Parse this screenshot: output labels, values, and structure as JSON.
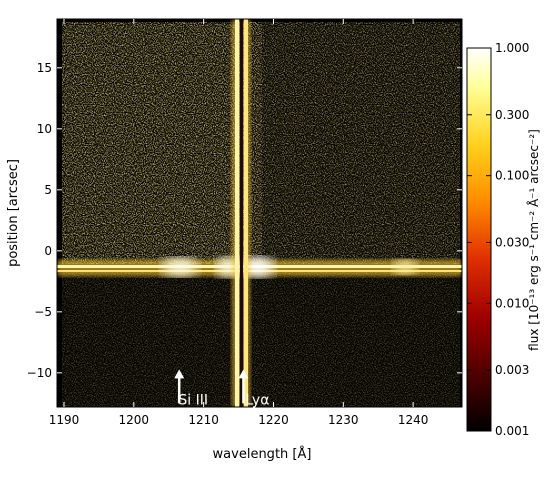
{
  "chart_data": {
    "type": "heatmap",
    "title": "",
    "xlabel": "wavelength [Å]",
    "ylabel": "position [arcsec]",
    "xlim": [
      1189,
      1247
    ],
    "ylim": [
      -12.8,
      19
    ],
    "x_ticks": [
      1190,
      1200,
      1210,
      1220,
      1230,
      1240
    ],
    "x_tick_labels": [
      "1190",
      "1200",
      "1210",
      "1220",
      "1230",
      "1240"
    ],
    "y_ticks": [
      -10,
      -5,
      0,
      5,
      10,
      15
    ],
    "y_tick_labels": [
      "−10",
      "−5",
      "0",
      "5",
      "10",
      "15"
    ],
    "colorbar": {
      "label": "flux [10⁻¹³ erg s⁻¹ cm⁻² Å⁻¹ arcsec⁻²]",
      "scale": "log",
      "range": [
        0.001,
        1.0
      ],
      "ticks": [
        0.001,
        0.003,
        0.01,
        0.03,
        0.1,
        0.3,
        1.0
      ],
      "tick_labels": [
        "0.001",
        "0.003",
        "0.010",
        "0.030",
        "0.100",
        "0.300",
        "1.000"
      ],
      "colormap": [
        "#000000",
        "#4a0000",
        "#a00000",
        "#e03000",
        "#ff8c00",
        "#ffd21e",
        "#ffff9a",
        "#ffffff"
      ]
    },
    "features": [
      {
        "type": "horizontal_band",
        "y": 0,
        "description_label": ""
      },
      {
        "type": "vertical_band",
        "x": 1215.7
      }
    ],
    "annotations": [
      {
        "label": "Si III",
        "x": 1206.5,
        "y_start": -12.5,
        "y_end": -9.8
      },
      {
        "label": "Lyα",
        "x": 1215.7,
        "y_start": -12.5,
        "y_end": -9.8
      }
    ]
  }
}
